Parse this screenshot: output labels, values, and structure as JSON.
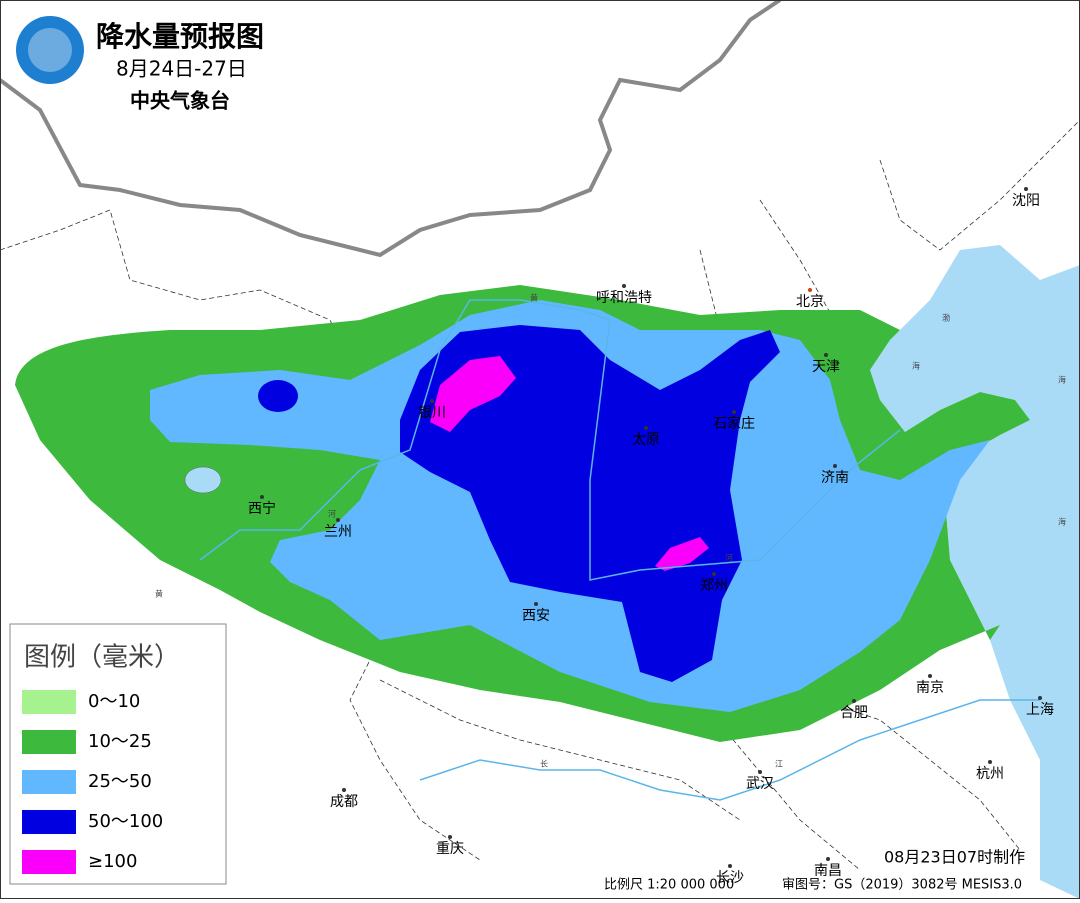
{
  "header": {
    "title": "降水量预报图",
    "period": "8月24日-27日",
    "issuer": "中央气象台"
  },
  "legend": {
    "title": "图例（毫米）",
    "items": [
      {
        "label": "0～10",
        "color": "#a6f28f"
      },
      {
        "label": "10～25",
        "color": "#3dba3d"
      },
      {
        "label": "25～50",
        "color": "#61b8ff"
      },
      {
        "label": "50～100",
        "color": "#0000e1"
      },
      {
        "label": "≥100",
        "color": "#fa00fa"
      }
    ]
  },
  "cities": [
    "呼和浩特",
    "北京",
    "天津",
    "沈阳",
    "银川",
    "太原",
    "石家庄",
    "济南",
    "西宁",
    "兰州",
    "西安",
    "郑州",
    "南京",
    "合肥",
    "上海",
    "武汉",
    "杭州",
    "成都",
    "重庆",
    "长沙",
    "南昌"
  ],
  "map_labels": [
    "黄",
    "河",
    "河",
    "黄",
    "长",
    "江",
    "渤",
    "海",
    "海",
    "海"
  ],
  "footer": {
    "made": "08月23日07时制作",
    "scale": "比例尺 1:20 000 000",
    "approval": "审图号：GS（2019）3082号 MESIS3.0"
  }
}
